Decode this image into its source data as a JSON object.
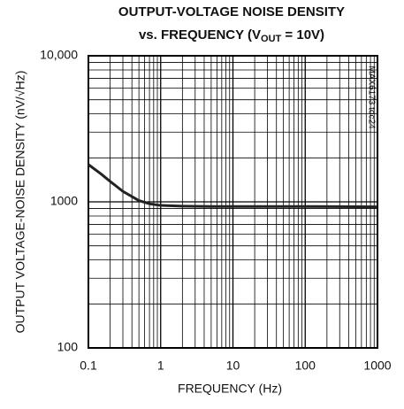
{
  "chart_data": {
    "type": "line",
    "title": "OUTPUT-VOLTAGE NOISE DENSITY",
    "subtitle": [
      "vs. FREQUENCY (V",
      "OUT",
      " = 10V)"
    ],
    "xlabel": "FREQUENCY (Hz)",
    "ylabel": "OUTPUT VOLTAGE-NOISE DENSITY (nV/√Hz)",
    "annotation": "MAX6173 toc24",
    "xscale": "log",
    "yscale": "log",
    "grid": true,
    "xlim": [
      0.1,
      1000
    ],
    "ylim": [
      100,
      10000
    ],
    "xticks": [
      0.1,
      1,
      10,
      100,
      1000
    ],
    "yticks": [
      100,
      1000,
      {
        "value": 10000,
        "label": "10,000"
      }
    ],
    "xminor": [
      0.2,
      0.3,
      0.4,
      0.5,
      0.6,
      0.7,
      0.8,
      0.9,
      2,
      3,
      4,
      5,
      6,
      7,
      8,
      9,
      20,
      30,
      40,
      50,
      60,
      70,
      80,
      90,
      200,
      300,
      400,
      500,
      600,
      700,
      800,
      900
    ],
    "yminor": [
      200,
      300,
      400,
      500,
      600,
      700,
      800,
      900,
      2000,
      3000,
      4000,
      5000,
      6000,
      7000,
      8000,
      9000
    ],
    "series": [
      {
        "color": "#222222",
        "x": [
          0.1,
          0.15,
          0.2,
          0.3,
          0.5,
          0.7,
          1,
          2,
          5,
          10,
          100,
          1000
        ],
        "values": [
          1800,
          1550,
          1380,
          1180,
          1020,
          970,
          945,
          935,
          930,
          930,
          930,
          925
        ]
      }
    ]
  }
}
